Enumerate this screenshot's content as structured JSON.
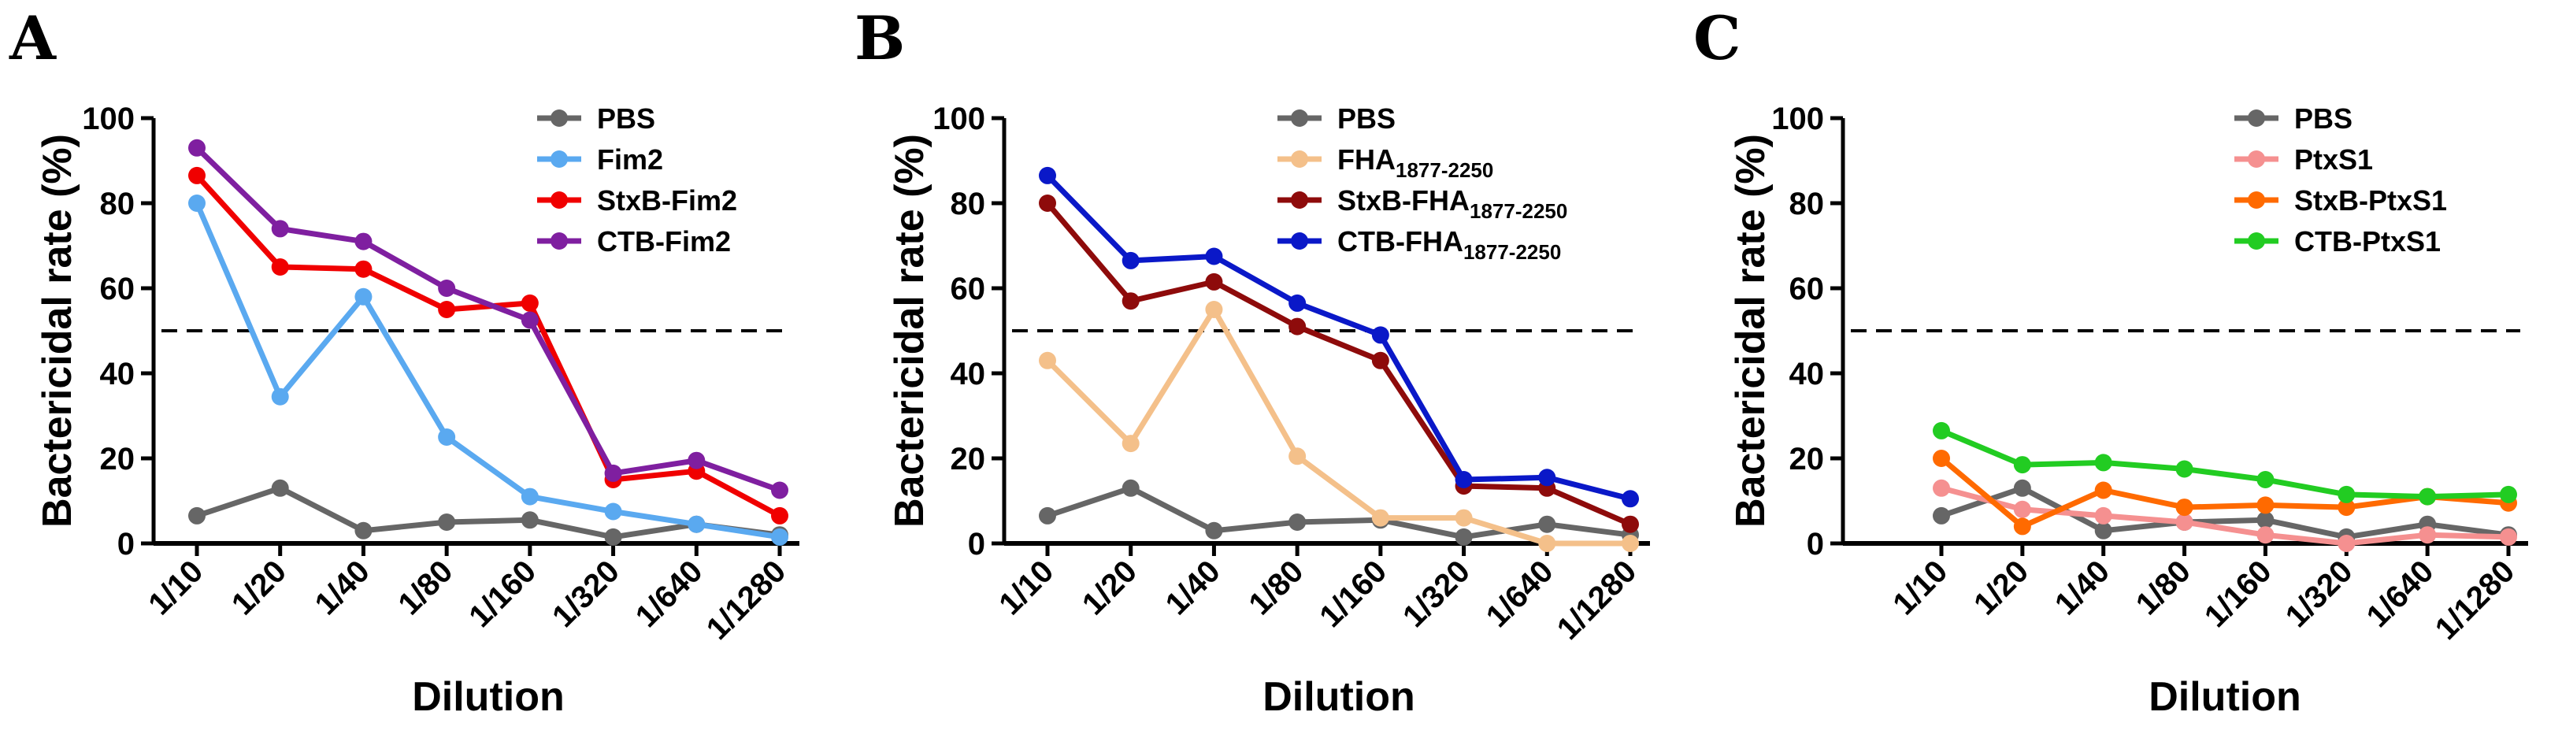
{
  "chart_data": [
    {
      "panel": "A",
      "type": "line",
      "xlabel": "Dilution",
      "ylabel": "Bactericidal rate (%)",
      "ylim": [
        0,
        100
      ],
      "yticks": [
        "0",
        "20",
        "40",
        "60",
        "80",
        "100"
      ],
      "categories": [
        "1/10",
        "1/20",
        "1/40",
        "1/80",
        "1/160",
        "1/320",
        "1/640",
        "1/1280"
      ],
      "reference_line": 50,
      "legend": "top-right",
      "series": [
        {
          "name": "PBS",
          "name_sub": "",
          "color": "#666666",
          "values": [
            6.5,
            13,
            3,
            5,
            5.5,
            1.5,
            4.5,
            2
          ]
        },
        {
          "name": "Fim2",
          "name_sub": "",
          "color": "#5aa9f0",
          "values": [
            80,
            34.5,
            58,
            25,
            11,
            7.5,
            4.5,
            1.5
          ]
        },
        {
          "name": "StxB-Fim2",
          "name_sub": "",
          "color": "#f00000",
          "values": [
            86.5,
            65,
            64.5,
            55,
            56.5,
            15,
            17,
            6.5
          ]
        },
        {
          "name": "CTB-Fim2",
          "name_sub": "",
          "color": "#7f1fa0",
          "values": [
            93,
            74,
            71,
            60,
            52.5,
            16.5,
            19.5,
            12.5
          ]
        }
      ]
    },
    {
      "panel": "B",
      "type": "line",
      "xlabel": "Dilution",
      "ylabel": "Bactericidal rate (%)",
      "ylim": [
        0,
        100
      ],
      "yticks": [
        "0",
        "20",
        "40",
        "60",
        "80",
        "100"
      ],
      "categories": [
        "1/10",
        "1/20",
        "1/40",
        "1/80",
        "1/160",
        "1/320",
        "1/640",
        "1/1280"
      ],
      "reference_line": 50,
      "legend": "top-right",
      "series": [
        {
          "name": "PBS",
          "name_sub": "",
          "color": "#666666",
          "values": [
            6.5,
            13,
            3,
            5,
            5.5,
            1.5,
            4.5,
            2
          ]
        },
        {
          "name": "FHA",
          "name_sub": "1877-2250",
          "color": "#f4c08a",
          "values": [
            43,
            23.5,
            55,
            20.5,
            6,
            6,
            0,
            0
          ]
        },
        {
          "name": "StxB-FHA",
          "name_sub": "1877-2250",
          "color": "#8e0b0b",
          "values": [
            80,
            57,
            61.5,
            51,
            43,
            13.5,
            13,
            4.5
          ]
        },
        {
          "name": "CTB-FHA",
          "name_sub": "1877-2250",
          "color": "#0a18c8",
          "values": [
            86.5,
            66.5,
            67.5,
            56.5,
            49,
            15,
            15.5,
            10.5
          ]
        }
      ]
    },
    {
      "panel": "C",
      "type": "line",
      "xlabel": "Dilution",
      "ylabel": "Bactericidal rate (%)",
      "ylim": [
        0,
        100
      ],
      "yticks": [
        "0",
        "20",
        "40",
        "60",
        "80",
        "100"
      ],
      "categories": [
        "1/10",
        "1/20",
        "1/40",
        "1/80",
        "1/160",
        "1/320",
        "1/640",
        "1/1280"
      ],
      "reference_line": 50,
      "legend": "top-right",
      "series": [
        {
          "name": "PBS",
          "name_sub": "",
          "color": "#666666",
          "values": [
            6.5,
            13,
            3,
            5,
            5.5,
            1.5,
            4.5,
            2
          ]
        },
        {
          "name": "PtxS1",
          "name_sub": "",
          "color": "#f59090",
          "values": [
            13,
            8,
            6.5,
            5,
            2,
            0,
            2,
            1.5
          ]
        },
        {
          "name": "StxB-PtxS1",
          "name_sub": "",
          "color": "#ff6a00",
          "values": [
            20,
            4,
            12.5,
            8.5,
            9,
            8.5,
            11,
            9.5
          ]
        },
        {
          "name": "CTB-PtxS1",
          "name_sub": "",
          "color": "#22cc22",
          "values": [
            26.5,
            18.5,
            19,
            17.5,
            15,
            11.5,
            11,
            11.5
          ]
        }
      ]
    }
  ]
}
